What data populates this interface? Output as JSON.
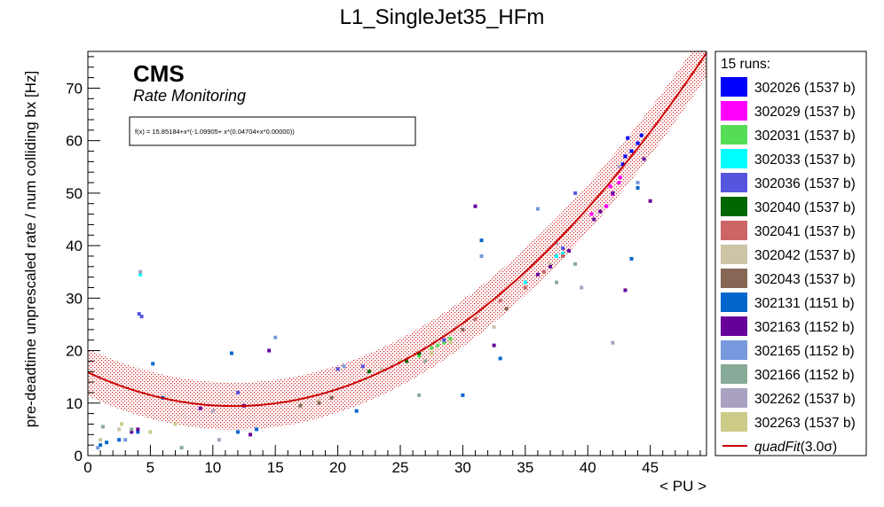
{
  "chart_data": {
    "type": "scatter",
    "title": "L1_SingleJet35_HFm",
    "xlabel": "< PU >",
    "ylabel": "pre-deadtime unprescaled rate / num colliding bx [Hz]",
    "xlim": [
      0,
      49.5
    ],
    "ylim": [
      0,
      77
    ],
    "x_ticks": [
      0,
      5,
      10,
      15,
      20,
      25,
      30,
      35,
      40,
      45
    ],
    "y_ticks": [
      0,
      10,
      20,
      30,
      40,
      50,
      60,
      70
    ],
    "grid": false,
    "legend_position": "right-outside",
    "annotations": {
      "cms": "CMS",
      "rate_monitoring": "Rate Monitoring",
      "fit_function": "f(x) = 15.85184+x*(-1.09905+ x*(0.04704+x*0.00000))"
    },
    "legend_header": "15 runs:",
    "series": [
      {
        "name": "302026 (1537 b)",
        "color": "#0000ff",
        "x": [
          43.5,
          44.0,
          43.0,
          42.8,
          44.3,
          43.2
        ],
        "y": [
          58.0,
          59.5,
          57.0,
          55.5,
          61.0,
          60.5
        ]
      },
      {
        "name": "302029 (1537 b)",
        "color": "#ff00ff",
        "x": [
          41.5,
          42.0,
          42.5,
          41.8,
          42.6,
          40.3
        ],
        "y": [
          47.5,
          49.8,
          52.0,
          51.3,
          53.0,
          46.0
        ]
      },
      {
        "name": "302031 (1537 b)",
        "color": "#55dd55",
        "x": [
          27.5,
          28.5,
          29.0,
          26.5,
          28.0
        ],
        "y": [
          20.5,
          21.5,
          22.3,
          19.0,
          21.0
        ]
      },
      {
        "name": "302033 (1537 b)",
        "color": "#00ffff",
        "x": [
          37.5,
          38.0,
          35.0,
          4.2
        ],
        "y": [
          38.0,
          38.5,
          33.0,
          34.5
        ]
      },
      {
        "name": "302036 (1537 b)",
        "color": "#5555dd",
        "x": [
          4.1,
          4.3,
          12.0,
          20.0,
          22.0,
          28.5,
          38.0,
          39.0
        ],
        "y": [
          27.0,
          26.5,
          12.0,
          16.5,
          17.0,
          22.0,
          39.5,
          50.0
        ]
      },
      {
        "name": "302040 (1537 b)",
        "color": "#006600",
        "x": [
          22.5,
          25.5,
          26.5
        ],
        "y": [
          16.0,
          18.0,
          19.5
        ]
      },
      {
        "name": "302041 (1537 b)",
        "color": "#cc6666",
        "x": [
          35.0,
          36.5,
          38.0,
          31.0,
          33.0
        ],
        "y": [
          32.0,
          35.0,
          38.0,
          26.0,
          29.5
        ]
      },
      {
        "name": "302042 (1537 b)",
        "color": "#ccc4a6",
        "x": [
          18.5,
          23.5,
          32.5,
          37.0,
          1.0,
          2.5
        ],
        "y": [
          10.5,
          16.5,
          24.5,
          36.5,
          3.0,
          5.0
        ]
      },
      {
        "name": "302043 (1537 b)",
        "color": "#886655",
        "x": [
          17.0,
          18.5,
          19.5,
          30.0,
          33.5
        ],
        "y": [
          9.5,
          10.0,
          11.0,
          24.0,
          28.0
        ]
      },
      {
        "name": "302131 (1151 b)",
        "color": "#0066cc",
        "x": [
          1.0,
          1.5,
          2.5,
          4.0,
          5.2,
          6.0,
          11.5,
          12.0,
          13.5,
          21.5,
          30.0,
          31.5,
          33.0,
          43.5,
          44.0
        ],
        "y": [
          2.0,
          2.5,
          3.0,
          4.5,
          17.5,
          11.0,
          19.5,
          4.5,
          5.0,
          8.5,
          11.5,
          41.0,
          18.5,
          37.5,
          51.0
        ]
      },
      {
        "name": "302163 (1152 b)",
        "color": "#660099",
        "x": [
          3.5,
          4.0,
          9.0,
          12.5,
          13.0,
          14.5,
          31.0,
          32.5,
          36.0,
          37.0,
          38.5,
          40.5,
          41.0,
          42.0,
          43.0,
          44.5,
          45.0
        ],
        "y": [
          4.5,
          5.0,
          9.0,
          9.5,
          4.0,
          20.0,
          47.5,
          21.0,
          34.5,
          36.0,
          39.0,
          45.0,
          46.5,
          50.0,
          31.5,
          56.5,
          48.5
        ]
      },
      {
        "name": "302165 (1152 b)",
        "color": "#7799dd",
        "x": [
          0.8,
          15.0,
          20.5,
          31.5,
          36.0,
          44.0,
          3.0
        ],
        "y": [
          1.5,
          22.5,
          17.0,
          38.0,
          47.0,
          52.0,
          3.0
        ]
      },
      {
        "name": "302166 (1152 b)",
        "color": "#88aa99",
        "x": [
          1.2,
          3.5,
          7.5,
          26.5,
          27.0,
          37.5,
          39.0
        ],
        "y": [
          5.5,
          5.0,
          1.5,
          11.5,
          18.0,
          33.0,
          36.5
        ]
      },
      {
        "name": "302262 (1537 b)",
        "color": "#aaa0c0",
        "x": [
          4.2,
          10.5,
          42.0,
          42.5,
          39.5,
          37.5,
          10.0
        ],
        "y": [
          35.0,
          3.0,
          21.5,
          55.0,
          32.0,
          40.5,
          8.5
        ]
      },
      {
        "name": "302263 (1537 b)",
        "color": "#cccc88",
        "x": [
          2.7,
          5.0,
          7.0,
          25.0,
          27.5,
          29.0
        ],
        "y": [
          6.0,
          4.5,
          6.0,
          18.0,
          19.5,
          21.5
        ]
      }
    ],
    "fit": {
      "name": "quadFit",
      "name_suffix": "(3.0σ)",
      "color": "#cc0000",
      "coefficients": [
        15.85184,
        -1.09905,
        0.04704
      ],
      "band_half_width": 4.5,
      "band_color": "#cc3333"
    }
  }
}
